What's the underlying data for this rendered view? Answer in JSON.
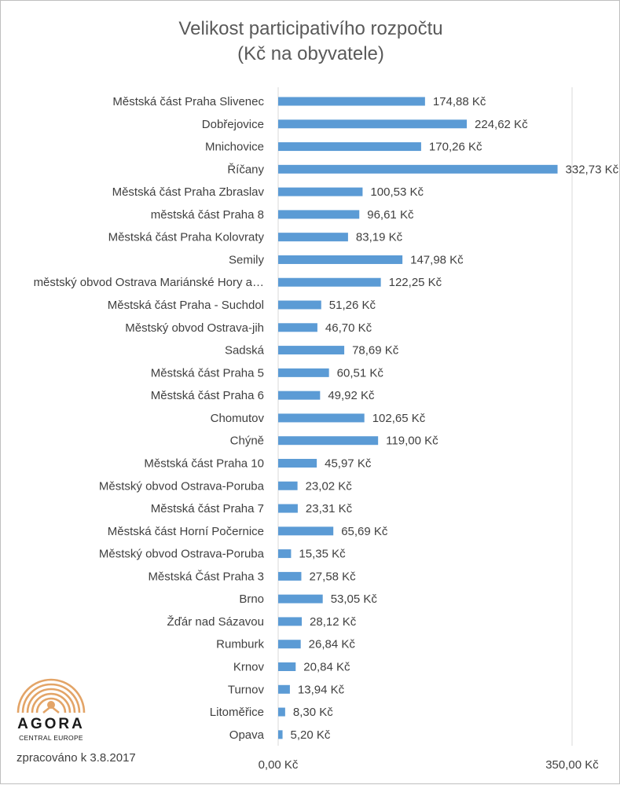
{
  "title_line1": "Velikost participativího rozpočtu",
  "title_line2": "(Kč na obyvatele)",
  "footer_note": "zpracováno k 3.8.2017",
  "logo": {
    "word": "AGORA",
    "sub": "CENTRAL EUROPE",
    "color": "#e3a467",
    "icon": "agora-arc-logo"
  },
  "chart_data": {
    "type": "bar",
    "orientation": "horizontal",
    "title": "Velikost participativího rozpočtu (Kč na obyvatele)",
    "bar_color": "#5b9bd5",
    "xlim": [
      0,
      350
    ],
    "x_ticks": [
      0,
      350
    ],
    "x_tick_labels": [
      "0,00 Kč",
      "350,00 Kč"
    ],
    "grid": "vertical",
    "categories": [
      "Městská část Praha Slivenec",
      "Dobřejovice",
      "Mnichovice",
      "Říčany",
      "Městská část Praha Zbraslav",
      "městská část Praha 8",
      "Městská část Praha Kolovraty",
      "Semily",
      "městský obvod Ostrava Mariánské Hory  a…",
      "Městská část Praha - Suchdol",
      "Městský obvod Ostrava-jih",
      "Sadská",
      "Městská část Praha 5",
      "Městská část Praha 6",
      "Chomutov",
      "Chýně",
      "Městská část Praha 10",
      "Městský obvod Ostrava-Poruba",
      "Městská část Praha 7",
      "Městská část Horní Počernice",
      "Městský obvod Ostrava-Poruba",
      "Městská Část Praha 3",
      "Brno",
      "Žďár nad Sázavou",
      "Rumburk",
      "Krnov",
      "Turnov",
      "Litoměřice",
      "Opava"
    ],
    "values": [
      174.88,
      224.62,
      170.26,
      332.73,
      100.53,
      96.61,
      83.19,
      147.98,
      122.25,
      51.26,
      46.7,
      78.69,
      60.51,
      49.92,
      102.65,
      119.0,
      45.97,
      23.02,
      23.31,
      65.69,
      15.35,
      27.58,
      53.05,
      28.12,
      26.84,
      20.84,
      13.94,
      8.3,
      5.2
    ],
    "value_labels": [
      "174,88 Kč",
      "224,62 Kč",
      "170,26 Kč",
      "332,73 Kč",
      "100,53 Kč",
      "96,61 Kč",
      "83,19 Kč",
      "147,98 Kč",
      "122,25 Kč",
      "51,26 Kč",
      "46,70 Kč",
      "78,69 Kč",
      "60,51 Kč",
      "49,92 Kč",
      "102,65 Kč",
      "119,00 Kč",
      "45,97 Kč",
      "23,02 Kč",
      "23,31 Kč",
      "65,69 Kč",
      "15,35 Kč",
      "27,58 Kč",
      "53,05 Kč",
      "28,12 Kč",
      "26,84 Kč",
      "20,84 Kč",
      "13,94 Kč",
      "8,30 Kč",
      "5,20 Kč"
    ]
  }
}
